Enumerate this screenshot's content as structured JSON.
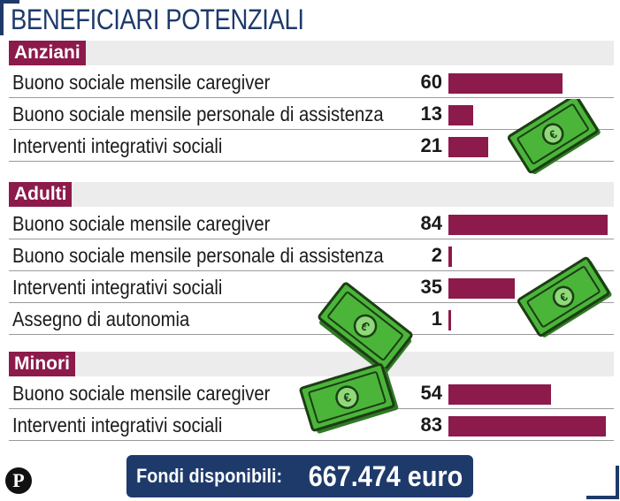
{
  "title": "BENEFICIARI POTENZIALI",
  "chart_data": {
    "type": "bar",
    "orientation": "horizontal",
    "groups": [
      {
        "name": "Anziani",
        "items": [
          {
            "label": "Buono sociale mensile caregiver",
            "value": 60
          },
          {
            "label": "Buono sociale mensile personale di assistenza",
            "value": 13
          },
          {
            "label": "Interventi integrativi sociali",
            "value": 21
          }
        ]
      },
      {
        "name": "Adulti",
        "items": [
          {
            "label": "Buono sociale mensile caregiver",
            "value": 84
          },
          {
            "label": "Buono sociale mensile personale di assistenza",
            "value": 2
          },
          {
            "label": "Interventi integrativi sociali",
            "value": 35
          },
          {
            "label": "Assegno di autonomia",
            "value": 1
          }
        ]
      },
      {
        "name": "Minori",
        "items": [
          {
            "label": "Buono sociale mensile caregiver",
            "value": 54
          },
          {
            "label": "Interventi integrativi sociali",
            "value": 83
          }
        ]
      }
    ],
    "xlim": [
      0,
      84
    ]
  },
  "footer": {
    "prefix": "Fondi disponibili:",
    "amount": "667.474 euro"
  },
  "logo_letter": "P",
  "colors": {
    "bar": "#8c1a4b",
    "section_label_bg": "#8c1a4b",
    "title": "#1e3a6b",
    "footer_bg": "#1e3a6b",
    "band_bg": "#ececec",
    "money_green": "#4bb53a"
  },
  "icons": [
    "banknote-icon",
    "banknote-icon",
    "banknote-icon",
    "banknote-icon"
  ]
}
